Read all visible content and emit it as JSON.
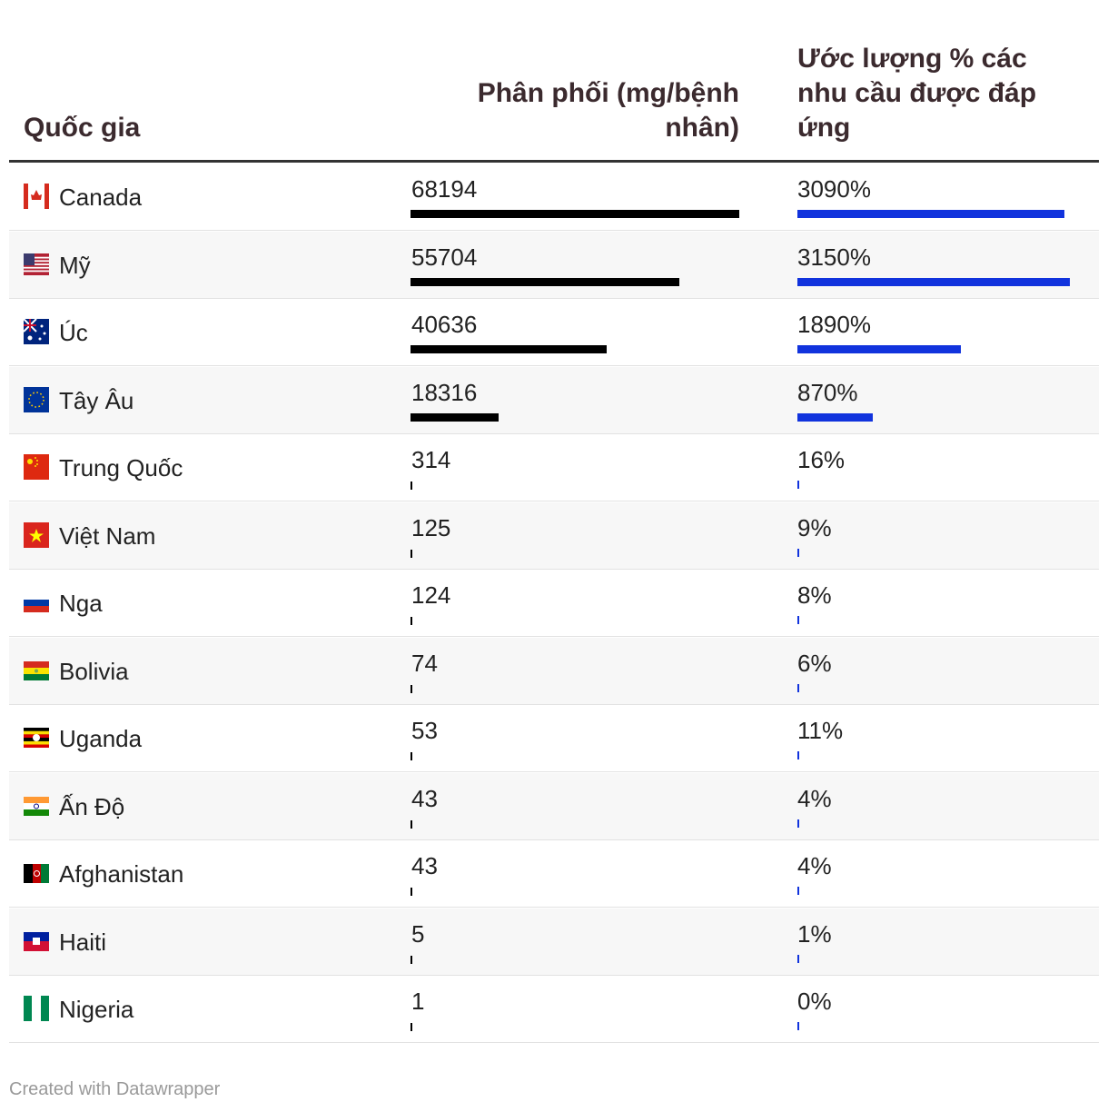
{
  "table": {
    "headers": [
      "Quốc gia",
      "Phân phối (mg/bệnh nhân)",
      "Ước lượng % các nhu cầu được đáp ứng"
    ],
    "rows": [
      {
        "country": "Canada",
        "distribution": 68194,
        "percent": 3090,
        "percent_label": "3090%"
      },
      {
        "country": "Mỹ",
        "distribution": 55704,
        "percent": 3150,
        "percent_label": "3150%"
      },
      {
        "country": "Úc",
        "distribution": 40636,
        "percent": 1890,
        "percent_label": "1890%"
      },
      {
        "country": "Tây Âu",
        "distribution": 18316,
        "percent": 870,
        "percent_label": "870%"
      },
      {
        "country": "Trung Quốc",
        "distribution": 314,
        "percent": 16,
        "percent_label": "16%"
      },
      {
        "country": "Việt Nam",
        "distribution": 125,
        "percent": 9,
        "percent_label": "9%"
      },
      {
        "country": "Nga",
        "distribution": 124,
        "percent": 8,
        "percent_label": "8%"
      },
      {
        "country": "Bolivia",
        "distribution": 74,
        "percent": 6,
        "percent_label": "6%"
      },
      {
        "country": "Uganda",
        "distribution": 53,
        "percent": 11,
        "percent_label": "11%"
      },
      {
        "country": "Ấn Độ",
        "distribution": 43,
        "percent": 4,
        "percent_label": "4%"
      },
      {
        "country": "Afghanistan",
        "distribution": 43,
        "percent": 4,
        "percent_label": "4%"
      },
      {
        "country": "Haiti",
        "distribution": 5,
        "percent": 1,
        "percent_label": "1%"
      },
      {
        "country": "Nigeria",
        "distribution": 1,
        "percent": 0,
        "percent_label": "0%"
      }
    ],
    "distribution_color": "#000000",
    "percent_color": "#1133dd",
    "footer": "Created with Datawrapper"
  }
}
